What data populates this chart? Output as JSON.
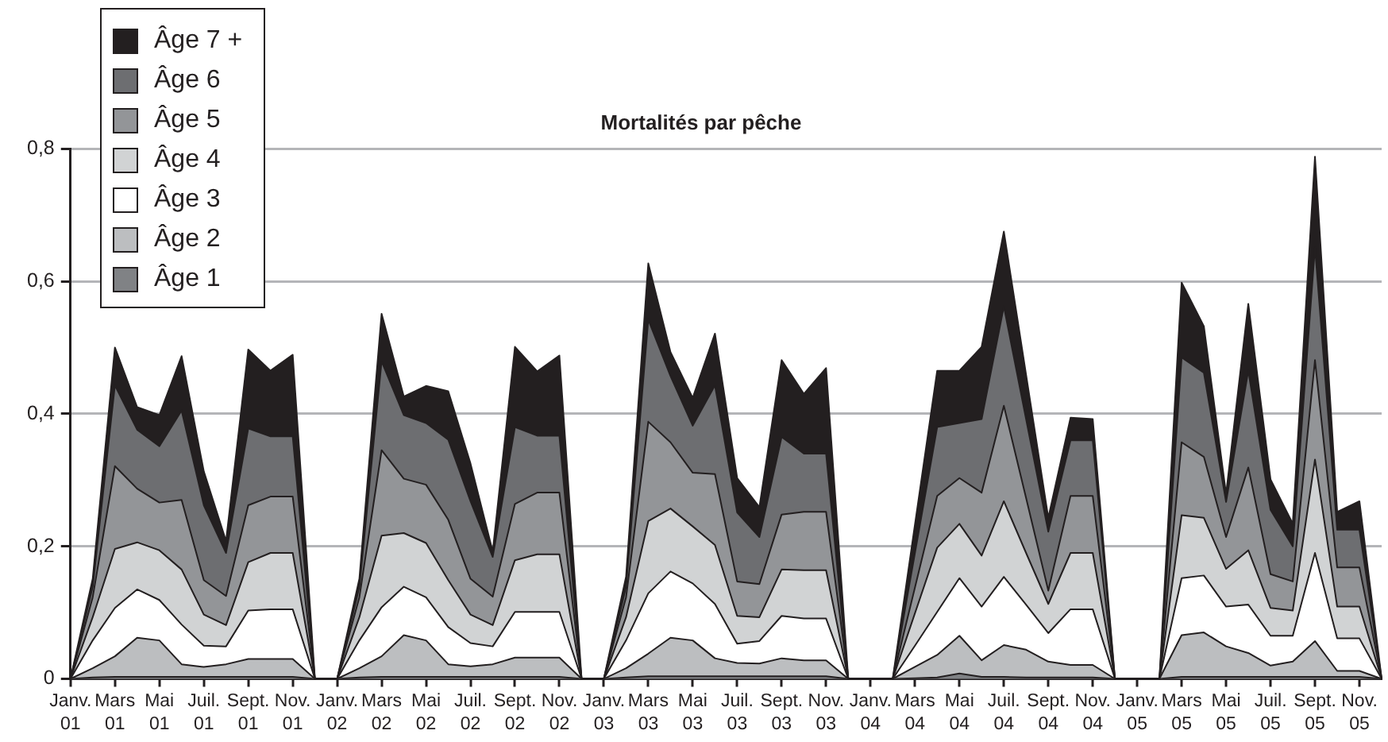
{
  "chart_data": {
    "type": "area",
    "title": "Mortalités par pêche",
    "stacked": true,
    "grid": "y",
    "legend": "top left",
    "categories": [
      "Janv. 01",
      null,
      "Mars 01",
      null,
      "Mai 01",
      null,
      "Juil. 01",
      null,
      "Sept. 01",
      null,
      "Nov. 01",
      null,
      "Janv. 02",
      null,
      "Mars 02",
      null,
      "Mai 02",
      null,
      "Juil. 02",
      null,
      "Sept. 02",
      null,
      "Nov. 02",
      null,
      "Janv. 03",
      null,
      "Mars 03",
      null,
      "Mai 03",
      null,
      "Juil. 03",
      null,
      "Sept. 03",
      null,
      "Nov. 03",
      null,
      "Janv. 04",
      null,
      "Mars 04",
      null,
      "Mai 04",
      null,
      "Juil. 04",
      null,
      "Sept. 04",
      null,
      "Nov. 04",
      null,
      "Janv. 05",
      null,
      "Mars 05",
      null,
      "Mai 05",
      null,
      "Juil. 05",
      null,
      "Sept. 05",
      null,
      "Nov. 05",
      null
    ],
    "ylim": [
      0,
      0.8
    ],
    "yticks": [
      0,
      {
        "value": 0.2,
        "label": "0,2"
      },
      {
        "value": 0.4,
        "label": "0,4"
      },
      {
        "value": 0.6,
        "label": "0,6"
      },
      {
        "value": 0.8,
        "label": "0,8"
      }
    ],
    "series": [
      {
        "name": "Âge 1",
        "color": "#808285",
        "values": [
          0,
          0.002,
          0.003,
          0.003,
          0.003,
          0.003,
          0.003,
          0.003,
          0.003,
          0.003,
          0.003,
          0,
          0,
          0.002,
          0.003,
          0.003,
          0.003,
          0.003,
          0.003,
          0.003,
          0.003,
          0.003,
          0.003,
          0,
          0,
          0.002,
          0.004,
          0.004,
          0.004,
          0.004,
          0.004,
          0.004,
          0.004,
          0.004,
          0.004,
          0,
          0,
          0,
          0.001,
          0.002,
          0.008,
          0.003,
          0.003,
          0.002,
          0.002,
          0.002,
          0.002,
          0,
          0,
          0,
          0.003,
          0.003,
          0.003,
          0.003,
          0.003,
          0.003,
          0.003,
          0.003,
          0.003,
          0
        ]
      },
      {
        "name": "Âge 2",
        "color": "#bcbec0",
        "values": [
          0,
          0.014,
          0.031,
          0.059,
          0.055,
          0.019,
          0.015,
          0.019,
          0.027,
          0.027,
          0.027,
          0,
          0,
          0.014,
          0.031,
          0.063,
          0.055,
          0.019,
          0.016,
          0.019,
          0.029,
          0.029,
          0.029,
          0,
          0,
          0.014,
          0.034,
          0.058,
          0.054,
          0.027,
          0.02,
          0.019,
          0.027,
          0.024,
          0.024,
          0,
          0,
          0,
          0.017,
          0.034,
          0.057,
          0.025,
          0.048,
          0.042,
          0.024,
          0.019,
          0.019,
          0,
          0,
          0,
          0.063,
          0.067,
          0.046,
          0.036,
          0.017,
          0.023,
          0.054,
          0.009,
          0.009,
          0
        ]
      },
      {
        "name": "Âge 3",
        "color": "#ffffff",
        "values": [
          0,
          0.042,
          0.073,
          0.073,
          0.061,
          0.06,
          0.032,
          0.027,
          0.073,
          0.075,
          0.075,
          0,
          0,
          0.042,
          0.074,
          0.073,
          0.065,
          0.056,
          0.035,
          0.027,
          0.069,
          0.069,
          0.069,
          0,
          0,
          0.042,
          0.091,
          0.1,
          0.086,
          0.082,
          0.029,
          0.034,
          0.064,
          0.063,
          0.063,
          0,
          0,
          0,
          0.032,
          0.065,
          0.087,
          0.081,
          0.103,
          0.068,
          0.043,
          0.084,
          0.084,
          0,
          0,
          0,
          0.086,
          0.086,
          0.06,
          0.073,
          0.045,
          0.039,
          0.133,
          0.049,
          0.049,
          0
        ]
      },
      {
        "name": "Âge 4",
        "color": "#d1d3d4",
        "values": [
          0,
          0.035,
          0.089,
          0.071,
          0.075,
          0.083,
          0.047,
          0.032,
          0.073,
          0.085,
          0.085,
          0,
          0,
          0.035,
          0.108,
          0.081,
          0.082,
          0.071,
          0.043,
          0.032,
          0.078,
          0.087,
          0.087,
          0,
          0,
          0.035,
          0.109,
          0.095,
          0.086,
          0.089,
          0.042,
          0.036,
          0.07,
          0.073,
          0.073,
          0,
          0,
          0,
          0.049,
          0.097,
          0.082,
          0.077,
          0.114,
          0.078,
          0.044,
          0.085,
          0.085,
          0,
          0,
          0,
          0.095,
          0.087,
          0.057,
          0.082,
          0.042,
          0.038,
          0.141,
          0.048,
          0.048,
          0
        ]
      },
      {
        "name": "Âge 5",
        "color": "#939598",
        "values": [
          0,
          0.03,
          0.125,
          0.081,
          0.072,
          0.105,
          0.052,
          0.044,
          0.086,
          0.085,
          0.085,
          0,
          0,
          0.03,
          0.129,
          0.082,
          0.088,
          0.091,
          0.054,
          0.043,
          0.085,
          0.093,
          0.093,
          0,
          0,
          0.03,
          0.15,
          0.1,
          0.081,
          0.107,
          0.052,
          0.05,
          0.083,
          0.088,
          0.088,
          0,
          0,
          0,
          0.039,
          0.078,
          0.069,
          0.095,
          0.144,
          0.083,
          0.02,
          0.086,
          0.086,
          0,
          0,
          0,
          0.11,
          0.092,
          0.048,
          0.125,
          0.051,
          0.044,
          0.15,
          0.059,
          0.059,
          0
        ]
      },
      {
        "name": "Âge 6",
        "color": "#6d6e71",
        "values": [
          0,
          0.016,
          0.122,
          0.089,
          0.085,
          0.135,
          0.113,
          0.065,
          0.116,
          0.091,
          0.091,
          0,
          0,
          0.016,
          0.134,
          0.096,
          0.093,
          0.121,
          0.117,
          0.06,
          0.116,
          0.086,
          0.086,
          0,
          0,
          0.016,
          0.154,
          0.1,
          0.071,
          0.134,
          0.104,
          0.071,
          0.117,
          0.088,
          0.088,
          0,
          0,
          0,
          0.052,
          0.104,
          0.083,
          0.111,
          0.15,
          0.119,
          0.089,
          0.084,
          0.084,
          0,
          0,
          0,
          0.128,
          0.127,
          0.053,
          0.146,
          0.097,
          0.053,
          0.17,
          0.057,
          0.057,
          0
        ]
      },
      {
        "name": "Âge 7 +",
        "color": "#231f20",
        "values": [
          0,
          0.012,
          0.057,
          0.034,
          0.047,
          0.082,
          0.051,
          0.018,
          0.119,
          0.099,
          0.123,
          0,
          0,
          0.012,
          0.072,
          0.028,
          0.056,
          0.073,
          0.057,
          0.008,
          0.121,
          0.097,
          0.121,
          0,
          0,
          0.015,
          0.085,
          0.036,
          0.042,
          0.078,
          0.052,
          0.045,
          0.116,
          0.09,
          0.129,
          0,
          0,
          0,
          0.043,
          0.085,
          0.079,
          0.109,
          0.113,
          0.067,
          0.021,
          0.034,
          0.032,
          0,
          0,
          0,
          0.113,
          0.07,
          0.012,
          0.101,
          0.046,
          0.034,
          0.137,
          0.027,
          0.043,
          0
        ]
      }
    ]
  }
}
